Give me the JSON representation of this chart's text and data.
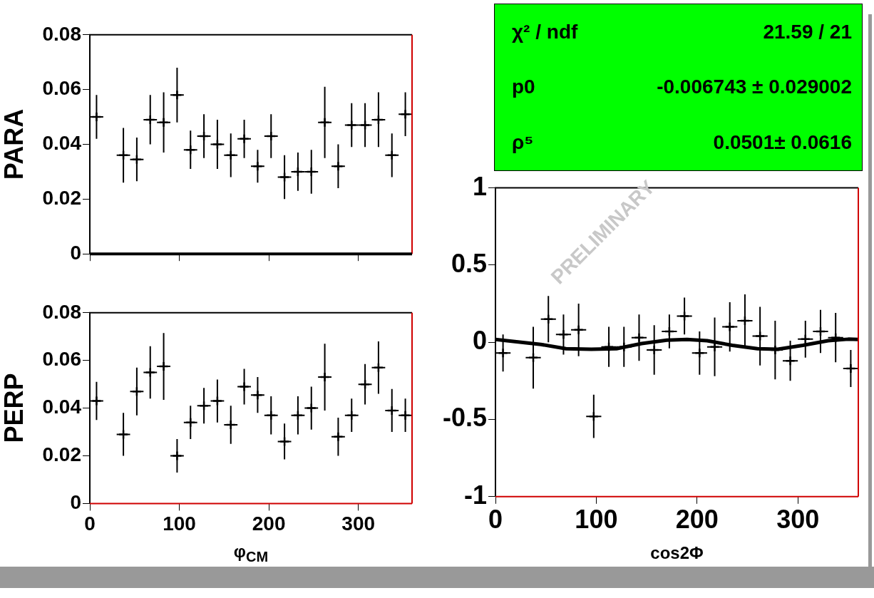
{
  "chart_data": [
    {
      "type": "scatter",
      "ylabel": "PARA",
      "x": [
        7.5,
        37.5,
        52.5,
        67.5,
        82.5,
        97.5,
        112.5,
        127.5,
        142.5,
        157.5,
        172.5,
        187.5,
        202.5,
        217.5,
        232.5,
        247.5,
        262.5,
        277.5,
        292.5,
        307.5,
        322.5,
        337.5,
        352.5
      ],
      "series": [
        {
          "color": "#000000",
          "values": [
            0.05,
            0.036,
            0.0345,
            0.049,
            0.048,
            0.058,
            0.038,
            0.043,
            0.04,
            0.036,
            0.042,
            0.032,
            0.043,
            0.028,
            0.03,
            0.03,
            0.048,
            0.032,
            0.047,
            0.047,
            0.049,
            0.036,
            0.051
          ],
          "errors": [
            0.008,
            0.01,
            0.008,
            0.009,
            0.011,
            0.01,
            0.007,
            0.008,
            0.009,
            0.008,
            0.007,
            0.006,
            0.008,
            0.008,
            0.007,
            0.008,
            0.013,
            0.008,
            0.008,
            0.008,
            0.01,
            0.008,
            0.008
          ],
          "xerrors": [
            7.5,
            7.5,
            7.5,
            7.5,
            7.5,
            7.5,
            7.5,
            7.5,
            7.5,
            7.5,
            7.5,
            7.5,
            7.5,
            7.5,
            7.5,
            7.5,
            7.5,
            7.5,
            7.5,
            7.5,
            7.5,
            7.5,
            7.5
          ]
        }
      ],
      "xlim": [
        0,
        360
      ],
      "xticks": [
        0,
        100,
        200,
        300
      ],
      "ylim": [
        0,
        0.08
      ],
      "yticks": [
        0,
        0.02,
        0.04,
        0.06,
        0.08
      ],
      "tick_labels": "y",
      "marker": "cross",
      "grid": false,
      "legend": false
    },
    {
      "type": "other",
      "annotations": [
        "χ² / ndf",
        "21.59 / 21",
        "p0",
        "-0.006743 ± 0.029002",
        "ρ⁵",
        "0.0501± 0.0616"
      ]
    },
    {
      "type": "scatter",
      "ylabel": "PERP",
      "xlabel": "φ$_{CM}$",
      "x": [
        7.5,
        37.5,
        52.5,
        67.5,
        82.5,
        97.5,
        112.5,
        127.5,
        142.5,
        157.5,
        172.5,
        187.5,
        202.5,
        217.5,
        232.5,
        247.5,
        262.5,
        277.5,
        292.5,
        307.5,
        322.5,
        337.5,
        352.5
      ],
      "series": [
        {
          "color": "#000000",
          "values": [
            0.043,
            0.029,
            0.047,
            0.055,
            0.0575,
            0.02,
            0.034,
            0.041,
            0.043,
            0.033,
            0.049,
            0.0455,
            0.037,
            0.026,
            0.037,
            0.04,
            0.053,
            0.028,
            0.037,
            0.05,
            0.057,
            0.039,
            0.037
          ],
          "errors": [
            0.008,
            0.009,
            0.01,
            0.011,
            0.014,
            0.007,
            0.007,
            0.0075,
            0.009,
            0.008,
            0.0075,
            0.0075,
            0.008,
            0.0075,
            0.008,
            0.009,
            0.014,
            0.008,
            0.007,
            0.0085,
            0.011,
            0.009,
            0.007
          ],
          "xerrors": [
            7.5,
            7.5,
            7.5,
            7.5,
            7.5,
            7.5,
            7.5,
            7.5,
            7.5,
            7.5,
            7.5,
            7.5,
            7.5,
            7.5,
            7.5,
            7.5,
            7.5,
            7.5,
            7.5,
            7.5,
            7.5,
            7.5,
            7.5
          ]
        }
      ],
      "xlim": [
        0,
        360
      ],
      "xticks": [
        0,
        100,
        200,
        300
      ],
      "ylim": [
        0,
        0.08
      ],
      "yticks": [
        0,
        0.02,
        0.04,
        0.06,
        0.08
      ],
      "marker": "cross",
      "grid": false,
      "legend": false
    },
    {
      "type": "scatter",
      "xlabel": "cos2Φ",
      "annotations": [
        "PRELIMINARY"
      ],
      "x": [
        7.5,
        37.5,
        52.5,
        67.5,
        82.5,
        97.5,
        112.5,
        127.5,
        142.5,
        157.5,
        172.5,
        187.5,
        202.5,
        217.5,
        232.5,
        247.5,
        262.5,
        277.5,
        292.5,
        307.5,
        322.5,
        337.5,
        352.5
      ],
      "series": [
        {
          "color": "#000000",
          "marker": "cross",
          "values": [
            -0.07,
            -0.1,
            0.15,
            0.05,
            0.08,
            -0.48,
            -0.03,
            -0.03,
            0.03,
            -0.05,
            0.07,
            0.17,
            -0.07,
            -0.03,
            0.1,
            0.14,
            0.04,
            -0.05,
            -0.12,
            0.02,
            0.07,
            0.03,
            -0.17
          ],
          "errors": [
            0.12,
            0.2,
            0.15,
            0.13,
            0.17,
            0.14,
            0.13,
            0.13,
            0.15,
            0.16,
            0.11,
            0.12,
            0.14,
            0.19,
            0.16,
            0.17,
            0.19,
            0.19,
            0.13,
            0.12,
            0.14,
            0.16,
            0.12
          ],
          "xerrors": [
            7.5,
            7.5,
            7.5,
            7.5,
            7.5,
            7.5,
            7.5,
            7.5,
            7.5,
            7.5,
            7.5,
            7.5,
            7.5,
            7.5,
            7.5,
            7.5,
            7.5,
            7.5,
            7.5,
            7.5,
            7.5,
            7.5,
            7.5
          ]
        },
        {
          "type": "line",
          "color": "#000000",
          "marker": "none",
          "x": [
            0,
            45,
            70,
            95,
            120,
            145,
            170,
            190,
            210,
            235,
            260,
            280,
            305,
            330,
            350,
            360
          ],
          "values": [
            0.018,
            -0.014,
            -0.042,
            -0.045,
            -0.042,
            -0.008,
            0.014,
            0.018,
            0.01,
            -0.02,
            -0.042,
            -0.045,
            -0.02,
            0.01,
            0.02,
            0.018
          ]
        }
      ],
      "xlim": [
        0,
        360
      ],
      "xticks": [
        0,
        100,
        200,
        300
      ],
      "ylim": [
        -1,
        1
      ],
      "yticks": [
        -1,
        -0.5,
        0,
        0.5,
        1
      ],
      "grid": false,
      "legend": false
    }
  ]
}
